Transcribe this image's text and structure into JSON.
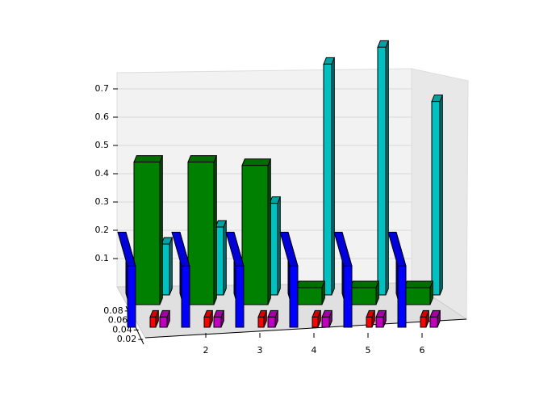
{
  "chart_data": {
    "type": "bar3d",
    "x": [
      1,
      2,
      3,
      4,
      5,
      6
    ],
    "xlim": [
      0.5,
      6.5
    ],
    "xticks": [
      2,
      3,
      4,
      5,
      6
    ],
    "zlim": [
      0,
      0.75
    ],
    "zticks": [
      0.1,
      0.2,
      0.3,
      0.4,
      0.5,
      0.6,
      0.7
    ],
    "ylim": [
      0.01,
      0.09
    ],
    "yticks": [
      0.02,
      0.04,
      0.06,
      0.08
    ],
    "series": [
      {
        "color": "#00c0c0",
        "values": [
          0.15,
          0.2,
          0.27,
          0.68,
          0.73,
          0.57
        ]
      },
      {
        "color": "#008000",
        "values": [
          0.42,
          0.42,
          0.41,
          0.05,
          0.05,
          0.05
        ]
      },
      {
        "color": "#0000ff",
        "values": [
          0.18,
          0.18,
          0.18,
          0.18,
          0.18,
          0.18
        ]
      },
      {
        "color": "#ff0000",
        "values": [
          0.03,
          0.03,
          0.03,
          0.03,
          0.03,
          0.03
        ]
      },
      {
        "color": "#c000c0",
        "values": [
          0.03,
          0.03,
          0.03,
          0.03,
          0.03,
          0.03
        ]
      }
    ]
  }
}
